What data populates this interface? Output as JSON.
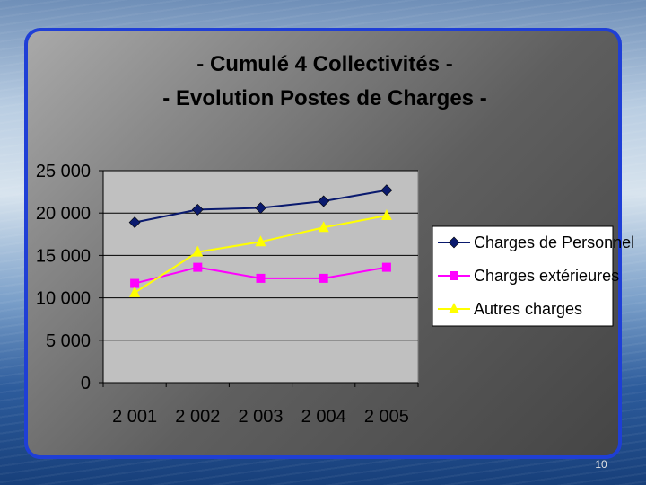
{
  "slide_number": "10",
  "colors": {
    "panel_border": "#1f3fd6",
    "plot_background": "#c0c0c0",
    "legend_background": "#ffffff"
  },
  "chart_data": {
    "type": "line",
    "title": [
      "- Cumulé 4 Collectivités -",
      "- Evolution Postes de Charges -"
    ],
    "categories": [
      "2 001",
      "2 002",
      "2 003",
      "2 004",
      "2 005"
    ],
    "y_tick_labels": [
      "0",
      "5 000",
      "10 000",
      "15 000",
      "20 000",
      "25 000"
    ],
    "ylim": [
      0,
      25000
    ],
    "grid": "horizontal",
    "legend_position": "right",
    "series": [
      {
        "name": "Charges de Personnel",
        "color": "#0a1a6e",
        "marker": "diamond",
        "values": [
          18900,
          20400,
          20600,
          21400,
          22700
        ]
      },
      {
        "name": "Charges extérieures",
        "color": "#ff00ff",
        "marker": "square",
        "values": [
          11700,
          13600,
          12300,
          12300,
          13600
        ]
      },
      {
        "name": "Autres charges",
        "color": "#ffff00",
        "marker": "triangle",
        "values": [
          10600,
          15400,
          16600,
          18300,
          19700
        ]
      }
    ]
  }
}
